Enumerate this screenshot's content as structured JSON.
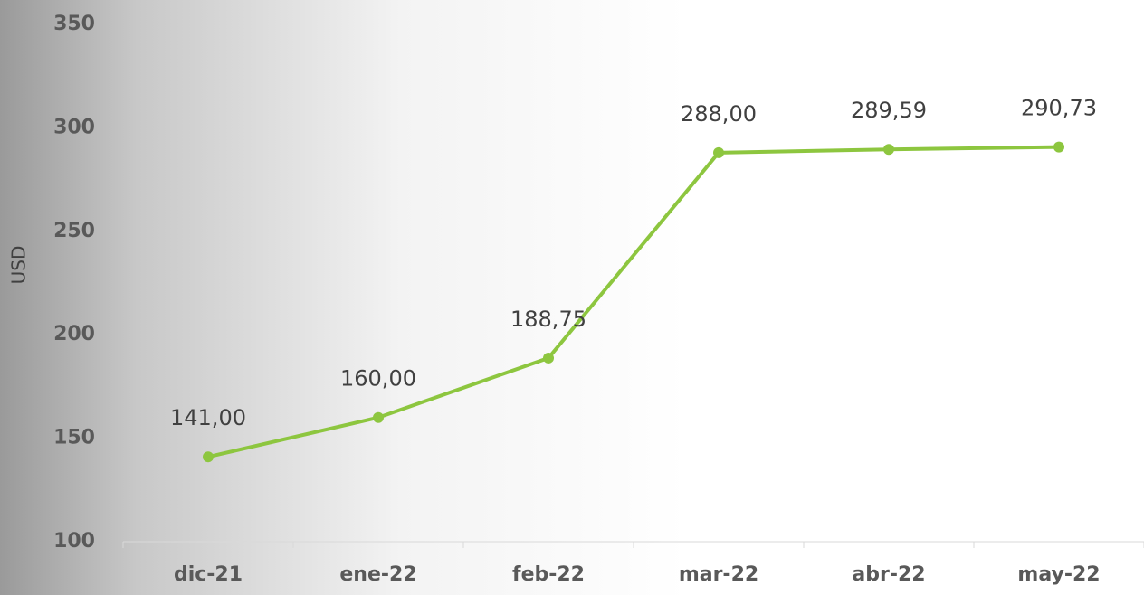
{
  "chart_data": {
    "type": "line",
    "y_axis_label": "USD",
    "categories": [
      "dic-21",
      "ene-22",
      "feb-22",
      "mar-22",
      "abr-22",
      "may-22"
    ],
    "series": [
      {
        "name": "USD",
        "color": "#8dc63f",
        "values": [
          141,
          160,
          188.75,
          288,
          289.59,
          290.73
        ],
        "value_labels": [
          "141,00",
          "160,00",
          "188,75",
          "288,00",
          "289,59",
          "290,73"
        ]
      }
    ],
    "ylim": [
      100,
      350
    ],
    "yticks": [
      100,
      150,
      200,
      250,
      300,
      350
    ],
    "grid": false
  }
}
